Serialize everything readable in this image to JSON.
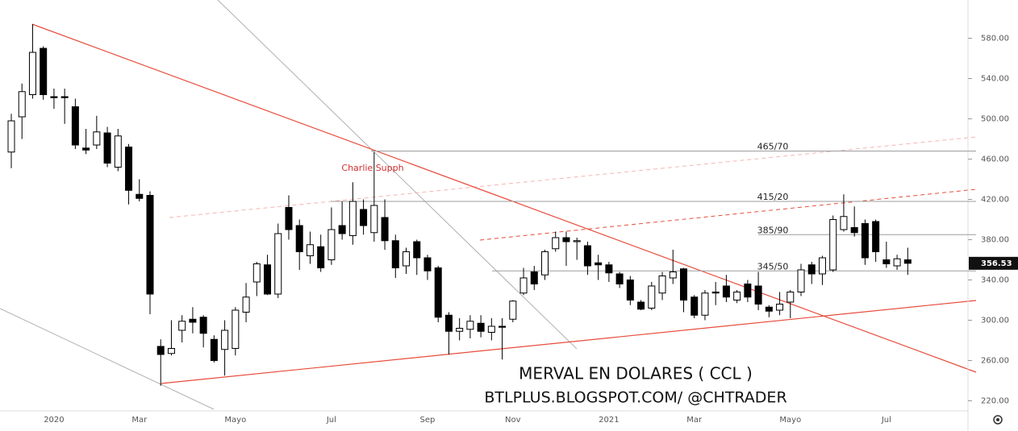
{
  "chart_data": {
    "type": "candlestick",
    "title": "MERVAL EN DOLARES ( CCL )",
    "subtitle": "BTLPLUS.BLOGSPOT.COM/ @CHTRADER",
    "annotation": "Charlie Supph",
    "categories": [
      null,
      null,
      null,
      null,
      "2020",
      null,
      null,
      null,
      null,
      null,
      null,
      null,
      "Mar",
      null,
      null,
      null,
      null,
      null,
      null,
      null,
      null,
      "Mayo",
      null,
      null,
      null,
      null,
      null,
      null,
      null,
      null,
      "Jul",
      null,
      null,
      null,
      null,
      null,
      null,
      null,
      null,
      "Sep",
      null,
      null,
      null,
      null,
      null,
      null,
      null,
      "Nov",
      null,
      null,
      null,
      null,
      null,
      null,
      null,
      null,
      "2021",
      null,
      null,
      null,
      null,
      null,
      null,
      null,
      "Mar",
      null,
      null,
      null,
      null,
      null,
      null,
      null,
      null,
      "Mayo",
      null,
      null,
      null,
      null,
      null,
      null,
      null,
      null,
      "Jul",
      null,
      null
    ],
    "open": [
      467,
      502,
      524,
      570,
      522,
      522,
      512,
      471,
      474,
      486,
      452,
      472,
      425,
      424,
      274,
      267,
      290,
      301,
      303,
      281,
      271,
      272,
      308,
      338,
      355,
      326,
      412,
      394,
      364,
      373,
      360,
      394,
      384,
      410,
      387,
      402,
      379,
      354,
      378,
      362,
      352,
      305,
      289,
      291,
      297,
      288,
      294,
      301,
      327,
      348,
      345,
      371,
      382,
      378,
      374,
      357,
      355,
      346,
      340,
      318,
      312,
      327,
      342,
      351,
      323,
      305,
      328,
      334,
      320,
      336,
      334,
      313,
      310,
      318,
      328,
      355,
      346,
      350,
      390,
      392,
      396,
      398,
      360,
      354,
      360
    ],
    "high": [
      505,
      535,
      594,
      572,
      530,
      530,
      520,
      490,
      503,
      492,
      490,
      475,
      440,
      428,
      281,
      300,
      305,
      313,
      305,
      285,
      300,
      313,
      337,
      358,
      365,
      396,
      424,
      400,
      388,
      385,
      412,
      418,
      437,
      420,
      467,
      420,
      385,
      372,
      380,
      365,
      354,
      308,
      302,
      305,
      305,
      302,
      302,
      320,
      352,
      354,
      370,
      388,
      388,
      382,
      378,
      365,
      358,
      348,
      344,
      320,
      338,
      348,
      370,
      352,
      325,
      330,
      338,
      345,
      330,
      340,
      348,
      315,
      328,
      330,
      356,
      358,
      364,
      404,
      425,
      413,
      400,
      400,
      378,
      365,
      372
    ],
    "low": [
      451,
      480,
      520,
      519,
      510,
      495,
      470,
      465,
      470,
      452,
      448,
      415,
      418,
      306,
      235,
      265,
      278,
      287,
      273,
      258,
      245,
      265,
      298,
      324,
      325,
      322,
      380,
      350,
      356,
      348,
      355,
      380,
      375,
      385,
      378,
      370,
      342,
      346,
      345,
      340,
      298,
      266,
      280,
      282,
      283,
      280,
      261,
      298,
      325,
      330,
      340,
      368,
      354,
      360,
      345,
      340,
      338,
      332,
      315,
      310,
      310,
      320,
      336,
      308,
      302,
      300,
      315,
      318,
      317,
      318,
      310,
      303,
      305,
      302,
      324,
      336,
      335,
      348,
      388,
      383,
      355,
      358,
      352,
      350,
      345
    ],
    "close": [
      498,
      527,
      566,
      524,
      521,
      521,
      474,
      469,
      487,
      456,
      483,
      429,
      421,
      326,
      266,
      272,
      299,
      298,
      287,
      260,
      290,
      310,
      323,
      356,
      326,
      386,
      390,
      368,
      375,
      352,
      390,
      386,
      418,
      394,
      414,
      379,
      352,
      368,
      362,
      349,
      303,
      289,
      292,
      299,
      289,
      294,
      293,
      319,
      342,
      336,
      368,
      382,
      378,
      379,
      354,
      355,
      347,
      336,
      320,
      311,
      334,
      344,
      348,
      320,
      305,
      327,
      327,
      323,
      328,
      323,
      316,
      309,
      316,
      328,
      350,
      346,
      362,
      400,
      403,
      387,
      362,
      368,
      356,
      361,
      356.53
    ],
    "ylim": [
      210,
      618
    ],
    "yticks": [
      {
        "value": 220,
        "label": "220.00"
      },
      {
        "value": 260,
        "label": "260.00"
      },
      {
        "value": 300,
        "label": "300.00"
      },
      {
        "value": 340,
        "label": "340.00"
      },
      {
        "value": 380,
        "label": "380.00"
      },
      {
        "value": 420,
        "label": "420.00"
      },
      {
        "value": 460,
        "label": "460.00"
      },
      {
        "value": 500,
        "label": "500.00"
      },
      {
        "value": 540,
        "label": "540.00"
      },
      {
        "value": 580,
        "label": "580.00"
      }
    ],
    "levels": [
      {
        "label": "465/70",
        "value": 468
      },
      {
        "label": "415/20",
        "value": 418
      },
      {
        "label": "385/90",
        "value": 385
      },
      {
        "label": "345/50",
        "value": 349
      }
    ],
    "up_color": "#ffffff",
    "down_color": "#000000",
    "level_color": "#9e9e9e"
  }
}
